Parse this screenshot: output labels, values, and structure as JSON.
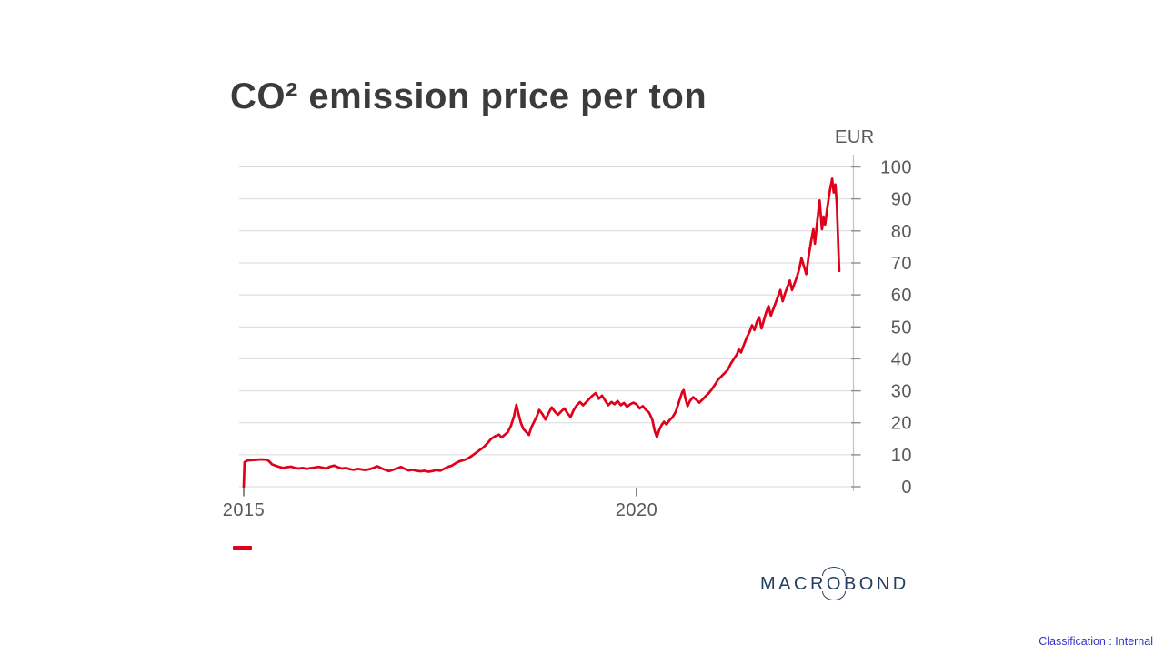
{
  "page": {
    "background": "#ffffff",
    "classification": "Classification : Internal",
    "classification_color": "#3333cc"
  },
  "logo": {
    "left": "MACR",
    "o": "O",
    "right": "BOND",
    "full_name": "MACROBOND",
    "color": "#243f5f"
  },
  "legend": {
    "swatch_color": "#e0001a"
  },
  "chart_data": {
    "type": "line",
    "title": "CO² emission price per ton",
    "unit_label": "EUR",
    "ylim": [
      0,
      100
    ],
    "xlim": [
      2014.942,
      2022.755
    ],
    "y_ticks": [
      0,
      10,
      20,
      30,
      40,
      50,
      60,
      70,
      80,
      90,
      100
    ],
    "x_ticks": [
      {
        "label": "2015",
        "value": 2015
      },
      {
        "label": "2020",
        "value": 2020
      }
    ],
    "grid": "horizontal",
    "axis_side": "right",
    "style": {
      "grid_color": "#d9d9d9",
      "axis_color": "#c4c4c4",
      "tick_color": "#8f8f8f",
      "label_color": "#595959",
      "title_color": "#3b3b3b"
    },
    "series": [
      {
        "color": "#e0001a",
        "points": [
          [
            2015.0,
            0.0
          ],
          [
            2015.01,
            7.7
          ],
          [
            2015.05,
            8.2
          ],
          [
            2015.1,
            8.3
          ],
          [
            2015.15,
            8.4
          ],
          [
            2015.2,
            8.5
          ],
          [
            2015.25,
            8.5
          ],
          [
            2015.3,
            8.4
          ],
          [
            2015.33,
            7.8
          ],
          [
            2015.36,
            7.0
          ],
          [
            2015.4,
            6.6
          ],
          [
            2015.45,
            6.2
          ],
          [
            2015.5,
            5.9
          ],
          [
            2015.55,
            6.1
          ],
          [
            2015.6,
            6.3
          ],
          [
            2015.65,
            5.9
          ],
          [
            2015.7,
            5.7
          ],
          [
            2015.75,
            5.9
          ],
          [
            2015.8,
            5.6
          ],
          [
            2015.85,
            5.8
          ],
          [
            2015.9,
            6.0
          ],
          [
            2015.95,
            6.2
          ],
          [
            2016.0,
            6.0
          ],
          [
            2016.05,
            5.7
          ],
          [
            2016.1,
            6.3
          ],
          [
            2016.15,
            6.6
          ],
          [
            2016.2,
            6.1
          ],
          [
            2016.25,
            5.7
          ],
          [
            2016.3,
            5.9
          ],
          [
            2016.35,
            5.5
          ],
          [
            2016.4,
            5.3
          ],
          [
            2016.45,
            5.6
          ],
          [
            2016.5,
            5.4
          ],
          [
            2016.55,
            5.2
          ],
          [
            2016.6,
            5.5
          ],
          [
            2016.65,
            5.9
          ],
          [
            2016.7,
            6.4
          ],
          [
            2016.75,
            5.8
          ],
          [
            2016.8,
            5.3
          ],
          [
            2016.85,
            4.9
          ],
          [
            2016.9,
            5.3
          ],
          [
            2016.95,
            5.7
          ],
          [
            2017.0,
            6.2
          ],
          [
            2017.05,
            5.6
          ],
          [
            2017.1,
            5.1
          ],
          [
            2017.15,
            5.3
          ],
          [
            2017.2,
            5.0
          ],
          [
            2017.25,
            4.8
          ],
          [
            2017.3,
            5.0
          ],
          [
            2017.35,
            4.7
          ],
          [
            2017.4,
            4.9
          ],
          [
            2017.45,
            5.2
          ],
          [
            2017.5,
            5.0
          ],
          [
            2017.55,
            5.6
          ],
          [
            2017.6,
            6.2
          ],
          [
            2017.65,
            6.6
          ],
          [
            2017.7,
            7.4
          ],
          [
            2017.75,
            8.0
          ],
          [
            2017.8,
            8.3
          ],
          [
            2017.85,
            8.8
          ],
          [
            2017.9,
            9.6
          ],
          [
            2017.95,
            10.5
          ],
          [
            2018.0,
            11.4
          ],
          [
            2018.05,
            12.3
          ],
          [
            2018.1,
            13.5
          ],
          [
            2018.15,
            15.0
          ],
          [
            2018.2,
            15.8
          ],
          [
            2018.25,
            16.3
          ],
          [
            2018.28,
            15.4
          ],
          [
            2018.32,
            16.2
          ],
          [
            2018.36,
            17.0
          ],
          [
            2018.4,
            19.0
          ],
          [
            2018.44,
            22.0
          ],
          [
            2018.47,
            25.6
          ],
          [
            2018.5,
            22.5
          ],
          [
            2018.53,
            19.8
          ],
          [
            2018.56,
            18.0
          ],
          [
            2018.6,
            17.0
          ],
          [
            2018.63,
            16.2
          ],
          [
            2018.66,
            18.5
          ],
          [
            2018.7,
            20.5
          ],
          [
            2018.73,
            22.0
          ],
          [
            2018.76,
            24.0
          ],
          [
            2018.8,
            22.8
          ],
          [
            2018.84,
            21.0
          ],
          [
            2018.88,
            23.0
          ],
          [
            2018.92,
            24.8
          ],
          [
            2018.96,
            23.5
          ],
          [
            2019.0,
            22.5
          ],
          [
            2019.04,
            23.5
          ],
          [
            2019.08,
            24.5
          ],
          [
            2019.12,
            23.0
          ],
          [
            2019.16,
            21.8
          ],
          [
            2019.2,
            24.0
          ],
          [
            2019.24,
            25.5
          ],
          [
            2019.28,
            26.5
          ],
          [
            2019.32,
            25.5
          ],
          [
            2019.36,
            26.5
          ],
          [
            2019.4,
            27.5
          ],
          [
            2019.44,
            28.5
          ],
          [
            2019.48,
            29.3
          ],
          [
            2019.52,
            27.5
          ],
          [
            2019.56,
            28.5
          ],
          [
            2019.6,
            27.0
          ],
          [
            2019.64,
            25.5
          ],
          [
            2019.68,
            26.5
          ],
          [
            2019.72,
            25.8
          ],
          [
            2019.76,
            26.8
          ],
          [
            2019.8,
            25.5
          ],
          [
            2019.84,
            26.2
          ],
          [
            2019.88,
            25.0
          ],
          [
            2019.92,
            25.8
          ],
          [
            2019.96,
            26.3
          ],
          [
            2020.0,
            25.8
          ],
          [
            2020.04,
            24.5
          ],
          [
            2020.08,
            25.2
          ],
          [
            2020.12,
            24.0
          ],
          [
            2020.16,
            23.2
          ],
          [
            2020.2,
            21.0
          ],
          [
            2020.23,
            17.5
          ],
          [
            2020.26,
            15.5
          ],
          [
            2020.29,
            17.8
          ],
          [
            2020.32,
            19.3
          ],
          [
            2020.35,
            20.3
          ],
          [
            2020.38,
            19.5
          ],
          [
            2020.42,
            20.8
          ],
          [
            2020.46,
            21.8
          ],
          [
            2020.5,
            23.5
          ],
          [
            2020.54,
            26.5
          ],
          [
            2020.58,
            29.5
          ],
          [
            2020.6,
            30.2
          ],
          [
            2020.62,
            27.8
          ],
          [
            2020.65,
            25.2
          ],
          [
            2020.68,
            26.8
          ],
          [
            2020.72,
            28.0
          ],
          [
            2020.76,
            27.2
          ],
          [
            2020.8,
            26.3
          ],
          [
            2020.84,
            27.3
          ],
          [
            2020.88,
            28.3
          ],
          [
            2020.92,
            29.3
          ],
          [
            2020.96,
            30.5
          ],
          [
            2021.0,
            32.0
          ],
          [
            2021.04,
            33.5
          ],
          [
            2021.08,
            34.5
          ],
          [
            2021.12,
            35.5
          ],
          [
            2021.16,
            36.5
          ],
          [
            2021.2,
            38.5
          ],
          [
            2021.24,
            40.0
          ],
          [
            2021.28,
            41.5
          ],
          [
            2021.3,
            43.0
          ],
          [
            2021.33,
            42.0
          ],
          [
            2021.36,
            44.0
          ],
          [
            2021.4,
            46.5
          ],
          [
            2021.44,
            48.5
          ],
          [
            2021.47,
            50.5
          ],
          [
            2021.5,
            49.0
          ],
          [
            2021.53,
            51.5
          ],
          [
            2021.56,
            53.0
          ],
          [
            2021.59,
            49.5
          ],
          [
            2021.62,
            52.0
          ],
          [
            2021.65,
            54.5
          ],
          [
            2021.68,
            56.5
          ],
          [
            2021.71,
            53.5
          ],
          [
            2021.74,
            55.5
          ],
          [
            2021.77,
            57.5
          ],
          [
            2021.8,
            59.5
          ],
          [
            2021.83,
            61.5
          ],
          [
            2021.86,
            58.0
          ],
          [
            2021.89,
            60.5
          ],
          [
            2021.92,
            62.5
          ],
          [
            2021.95,
            64.5
          ],
          [
            2021.98,
            61.5
          ],
          [
            2022.01,
            63.5
          ],
          [
            2022.04,
            65.5
          ],
          [
            2022.07,
            68.0
          ],
          [
            2022.1,
            71.5
          ],
          [
            2022.13,
            69.0
          ],
          [
            2022.16,
            66.5
          ],
          [
            2022.19,
            72.0
          ],
          [
            2022.22,
            76.5
          ],
          [
            2022.25,
            80.5
          ],
          [
            2022.27,
            76.0
          ],
          [
            2022.3,
            83.0
          ],
          [
            2022.33,
            89.5
          ],
          [
            2022.36,
            80.5
          ],
          [
            2022.38,
            84.5
          ],
          [
            2022.4,
            82.0
          ],
          [
            2022.43,
            87.5
          ],
          [
            2022.46,
            92.5
          ],
          [
            2022.49,
            96.3
          ],
          [
            2022.51,
            92.0
          ],
          [
            2022.53,
            94.5
          ],
          [
            2022.55,
            88.0
          ],
          [
            2022.57,
            74.0
          ],
          [
            2022.58,
            67.5
          ]
        ]
      }
    ]
  }
}
